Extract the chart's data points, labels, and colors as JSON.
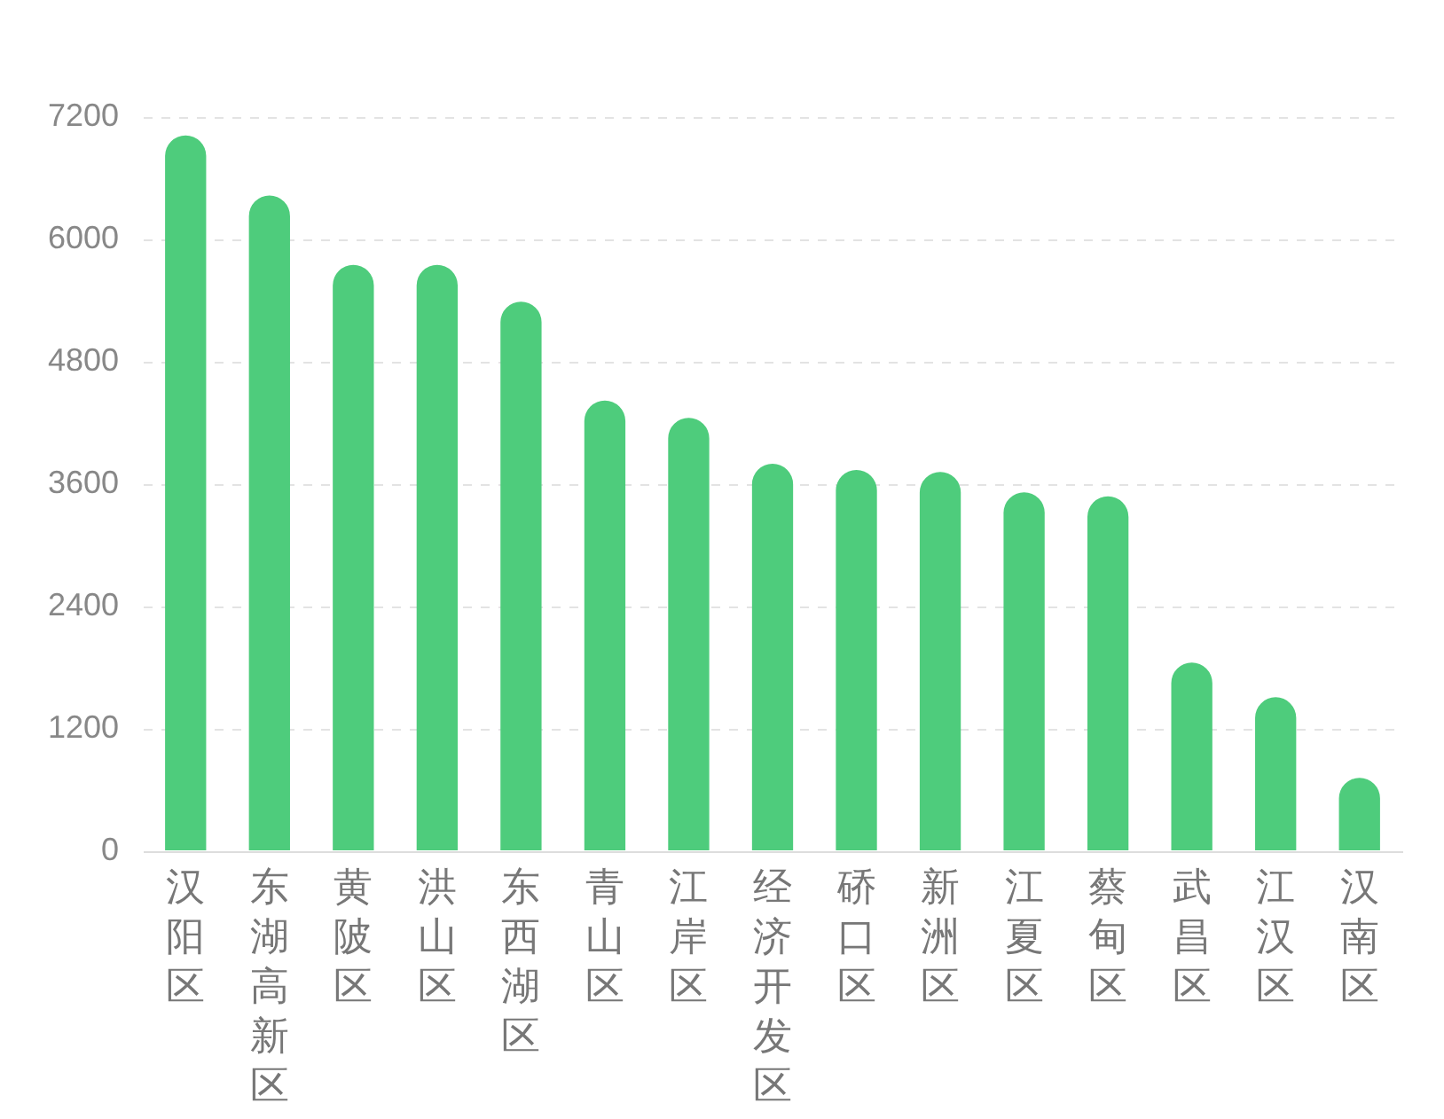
{
  "chart_data": {
    "type": "bar",
    "categories": [
      "汉阳区",
      "东湖高新区",
      "黄陂区",
      "洪山区",
      "东西湖区",
      "青山区",
      "江岸区",
      "经济开发区",
      "硚口区",
      "新洲区",
      "江夏区",
      "蔡甸区",
      "武昌区",
      "江汉区",
      "汉南区"
    ],
    "values": [
      7020,
      6430,
      5750,
      5750,
      5390,
      4420,
      4250,
      3800,
      3740,
      3720,
      3520,
      3480,
      1850,
      1510,
      720
    ],
    "color": "#4ecc7c",
    "ylim": [
      0,
      7200
    ],
    "yticks": [
      0,
      1200,
      2400,
      3600,
      4800,
      6000,
      7200
    ],
    "grid": "y"
  }
}
